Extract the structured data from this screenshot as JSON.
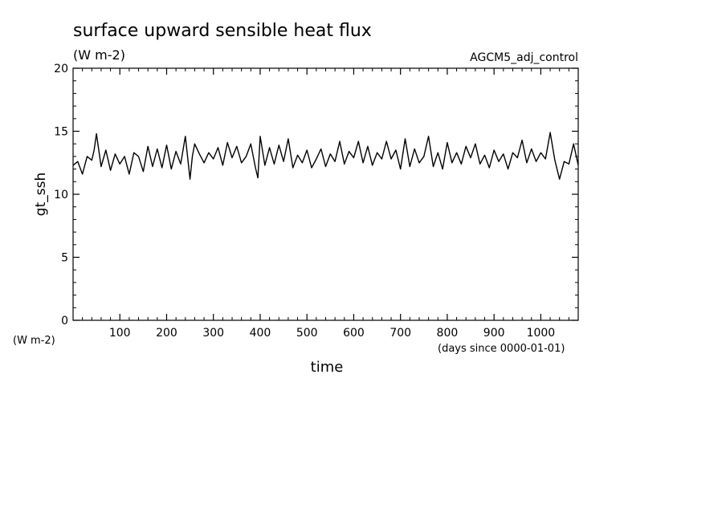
{
  "chart_data": {
    "type": "line",
    "title": "surface upward sensible heat flux",
    "title_units": "(W m-2)",
    "run_label": "AGCM5_adj_control",
    "ylabel": "gt_ssh",
    "y_units": "(W m-2)",
    "xlabel": "time",
    "x_units": "(days since 0000-01-01)",
    "xlim": [
      0,
      1080
    ],
    "ylim": [
      0,
      20
    ],
    "x_ticks": [
      100,
      200,
      300,
      400,
      500,
      600,
      700,
      800,
      900,
      1000
    ],
    "y_ticks": [
      0,
      5,
      10,
      15,
      20
    ],
    "x_tick_labels": [
      "100",
      "200",
      "300",
      "400",
      "500",
      "600",
      "700",
      "800",
      "900",
      "1000"
    ],
    "y_tick_labels": [
      "0",
      "5",
      "10",
      "15",
      "20"
    ],
    "line_color": "#000000",
    "series": [
      {
        "x": [
          0,
          10,
          20,
          30,
          40,
          45,
          50,
          60,
          70,
          80,
          90,
          100,
          110,
          120,
          130,
          140,
          150,
          160,
          170,
          180,
          190,
          200,
          210,
          220,
          230,
          240,
          245,
          250,
          255,
          260,
          270,
          280,
          290,
          300,
          310,
          320,
          330,
          340,
          350,
          360,
          370,
          380,
          390,
          395,
          400,
          410,
          420,
          430,
          440,
          450,
          460,
          470,
          480,
          490,
          500,
          510,
          520,
          530,
          540,
          550,
          560,
          570,
          580,
          590,
          600,
          610,
          620,
          630,
          640,
          650,
          660,
          670,
          680,
          690,
          700,
          710,
          720,
          730,
          740,
          750,
          760,
          770,
          780,
          790,
          800,
          810,
          820,
          830,
          840,
          850,
          860,
          870,
          880,
          890,
          900,
          910,
          920,
          930,
          940,
          950,
          960,
          970,
          980,
          990,
          1000,
          1010,
          1020,
          1030,
          1040,
          1050,
          1060,
          1070,
          1080
        ],
        "y": [
          12.3,
          12.6,
          11.6,
          13.0,
          12.7,
          13.5,
          14.8,
          12.2,
          13.5,
          11.9,
          13.2,
          12.4,
          13.0,
          11.6,
          13.3,
          13.0,
          11.8,
          13.8,
          12.2,
          13.6,
          12.1,
          13.9,
          12.0,
          13.4,
          12.4,
          14.6,
          12.9,
          11.2,
          13.0,
          14.0,
          13.2,
          12.5,
          13.3,
          12.8,
          13.7,
          12.3,
          14.1,
          12.9,
          13.8,
          12.5,
          13.0,
          14.0,
          12.1,
          11.3,
          14.6,
          12.3,
          13.7,
          12.4,
          13.9,
          12.6,
          14.4,
          12.1,
          13.1,
          12.5,
          13.5,
          12.1,
          12.8,
          13.6,
          12.2,
          13.2,
          12.6,
          14.2,
          12.4,
          13.4,
          12.9,
          14.2,
          12.5,
          13.8,
          12.3,
          13.3,
          12.8,
          14.2,
          12.8,
          13.5,
          12.0,
          14.4,
          12.2,
          13.6,
          12.5,
          13.0,
          14.6,
          12.2,
          13.3,
          12.0,
          14.1,
          12.5,
          13.3,
          12.4,
          13.8,
          12.9,
          14.0,
          12.4,
          13.1,
          12.1,
          13.5,
          12.6,
          13.2,
          12.0,
          13.3,
          12.9,
          14.3,
          12.5,
          13.6,
          12.6,
          13.3,
          12.8,
          14.9,
          12.7,
          11.2,
          12.6,
          12.4,
          14.0,
          12.3
        ]
      }
    ]
  }
}
